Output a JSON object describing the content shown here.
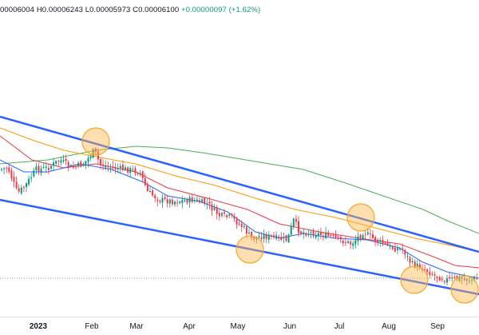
{
  "ohlc_header": {
    "open": "00006004",
    "high_label": "H",
    "high": "0.00006243",
    "low_label": "L",
    "low": "0.00005973",
    "close_label": "C",
    "close": "0.00006100",
    "change": "+0.00000097 (+1.62%)"
  },
  "chart_data": {
    "type": "candlestick",
    "x_axis": {
      "tick_labels": [
        "2023",
        "Feb",
        "Mar",
        "Apr",
        "May",
        "Jun",
        "Jul",
        "Aug",
        "Sep"
      ]
    },
    "price_range_visible": [
      5e-05,
      0.00012
    ],
    "last_close": 6.1e-05,
    "series": [
      {
        "name": "",
        "kind": "candles",
        "trend": "descending channel",
        "up_color": "#089981",
        "down_color": "#f23645"
      },
      {
        "name": "",
        "kind": "moving-average",
        "color": "#2962ff"
      },
      {
        "name": "",
        "kind": "moving-average",
        "color": "#f23645"
      },
      {
        "name": "",
        "kind": "moving-average",
        "color": "#ff9800"
      },
      {
        "name": "",
        "kind": "moving-average",
        "color": "#4caf50"
      }
    ],
    "trendlines": [
      {
        "role": "upper-channel",
        "color": "#2962ff"
      },
      {
        "role": "lower-channel",
        "color": "#2962ff"
      }
    ],
    "highlight_circles": [
      {
        "date": "Feb",
        "touch": "upper"
      },
      {
        "date": "May",
        "touch": "lower"
      },
      {
        "date": "Jul",
        "touch": "upper"
      },
      {
        "date": "Aug",
        "touch": "lower"
      },
      {
        "date": "Sep",
        "touch": "lower"
      }
    ],
    "grid": false,
    "colors": {
      "trendline": "#2962ff",
      "circle_fill": "#ffb74d",
      "circle_stroke": "#f5a623",
      "price_line": "#9598a1"
    }
  }
}
